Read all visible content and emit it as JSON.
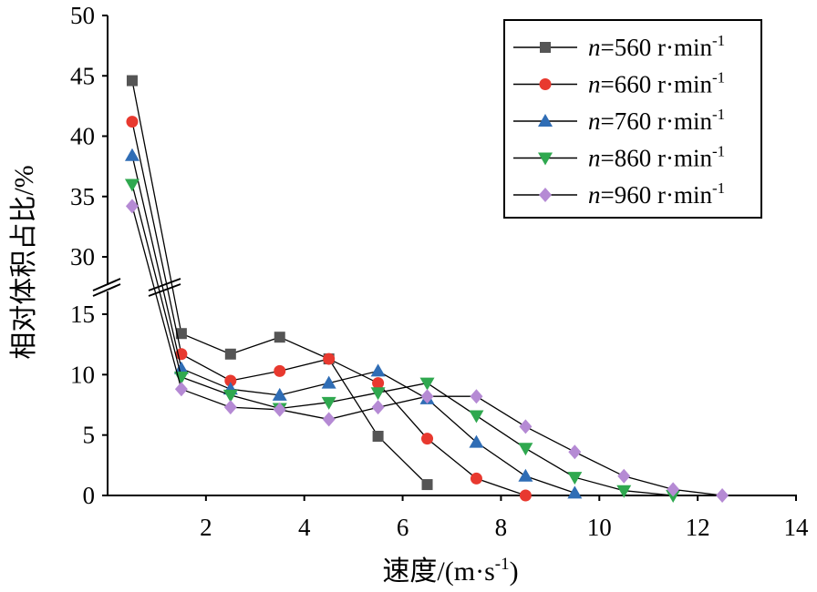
{
  "chart_data": {
    "type": "line",
    "title": "",
    "xlabel_main": "速度/(m·s",
    "xlabel_sup": "-1",
    "xlabel_close": ")",
    "ylabel": "相对体积占比/%",
    "xlim": [
      0,
      14
    ],
    "x_ticks": [
      "2",
      "4",
      "6",
      "8",
      "10",
      "12",
      "14"
    ],
    "y_axis_break": {
      "lower": [
        0,
        15
      ],
      "upper": [
        25,
        50
      ]
    },
    "y_ticks": [
      "0",
      "5",
      "10",
      "15",
      "30",
      "35",
      "40",
      "45",
      "50"
    ],
    "legend_position": "top-right",
    "series": [
      {
        "name_italic": "n",
        "name_value": "=560 r·min",
        "name_sup": "-1",
        "color": "#555555",
        "marker": "square",
        "x": [
          0.5,
          1.5,
          2.5,
          3.5,
          4.5,
          5.5,
          6.5
        ],
        "y": [
          44.6,
          13.4,
          11.7,
          13.1,
          11.3,
          4.9,
          0.9
        ]
      },
      {
        "name_italic": "n",
        "name_value": "=660 r·min",
        "name_sup": "-1",
        "color": "#e8392f",
        "marker": "circle",
        "x": [
          0.5,
          1.5,
          2.5,
          3.5,
          4.5,
          5.5,
          6.5,
          7.5,
          8.5
        ],
        "y": [
          41.2,
          11.7,
          9.5,
          10.3,
          11.3,
          9.3,
          4.7,
          1.4,
          0.0
        ]
      },
      {
        "name_italic": "n",
        "name_value": "=760 r·min",
        "name_sup": "-1",
        "color": "#2f6db5",
        "marker": "triangle-up",
        "x": [
          0.5,
          1.5,
          2.5,
          3.5,
          4.5,
          5.5,
          6.5,
          7.5,
          8.5,
          9.5
        ],
        "y": [
          38.4,
          10.5,
          8.8,
          8.3,
          9.3,
          10.3,
          8.0,
          4.4,
          1.6,
          0.2
        ]
      },
      {
        "name_italic": "n",
        "name_value": "=860 r·min",
        "name_sup": "-1",
        "color": "#2fa84f",
        "marker": "triangle-down",
        "x": [
          0.5,
          1.5,
          2.5,
          3.5,
          4.5,
          5.5,
          6.5,
          7.5,
          8.5,
          9.5,
          10.5,
          11.5
        ],
        "y": [
          36.0,
          9.8,
          8.3,
          7.2,
          7.7,
          8.5,
          9.3,
          6.6,
          3.9,
          1.5,
          0.4,
          0.0
        ]
      },
      {
        "name_italic": "n",
        "name_value": "=960 r·min",
        "name_sup": "-1",
        "color": "#b58ad4",
        "marker": "diamond",
        "x": [
          0.5,
          1.5,
          2.5,
          3.5,
          4.5,
          5.5,
          6.5,
          7.5,
          8.5,
          9.5,
          10.5,
          11.5,
          12.5
        ],
        "y": [
          34.2,
          8.8,
          7.3,
          7.1,
          6.3,
          7.3,
          8.2,
          8.2,
          5.7,
          3.6,
          1.6,
          0.5,
          0.0
        ]
      }
    ]
  }
}
